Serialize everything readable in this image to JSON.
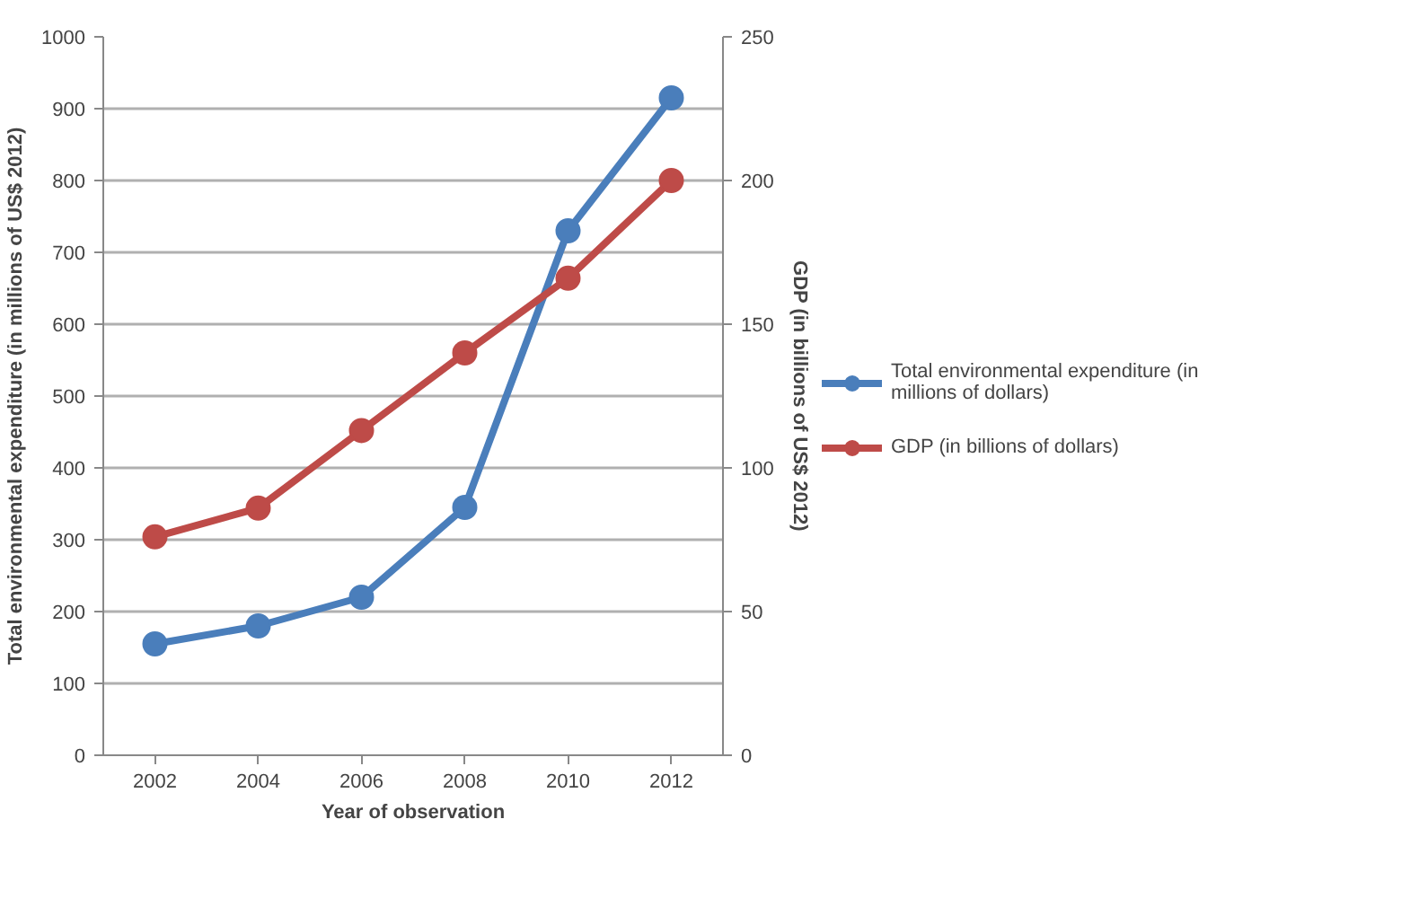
{
  "chart_data": {
    "type": "line",
    "xlabel": "Year of observation",
    "ylabel": "Total environmental expenditure (in millions of US$ 2012)",
    "y2label": "GDP (in billions of US$ 2012)",
    "categories": [
      "2002",
      "2004",
      "2006",
      "2008",
      "2010",
      "2012"
    ],
    "series": [
      {
        "name": "Total environmental expenditure (in millions of dollars)",
        "color": "#4a7ebb",
        "values": [
          155,
          180,
          220,
          345,
          730,
          915
        ]
      },
      {
        "name": "GDP (in billions of dollars)",
        "color": "#be4b48",
        "axis": "y2",
        "values": [
          76,
          86,
          113,
          140,
          166,
          200
        ]
      }
    ],
    "ylim": [
      0,
      1000
    ],
    "yticks": [
      0,
      100,
      200,
      300,
      400,
      500,
      600,
      700,
      800,
      900,
      1000
    ],
    "y2lim": [
      0,
      250
    ],
    "y2ticks": [
      0,
      50,
      100,
      150,
      200,
      250
    ],
    "grid": "y",
    "legend": "right",
    "marker": "circle",
    "line_style": "solid"
  }
}
